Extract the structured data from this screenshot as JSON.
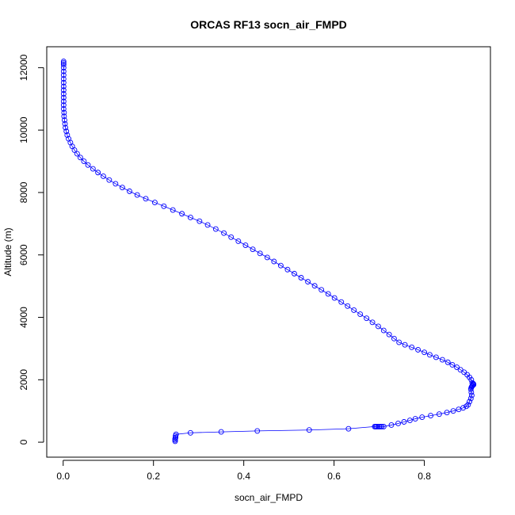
{
  "chart_data": {
    "type": "line",
    "title": "ORCAS RF13 socn_air_FMPD",
    "xlabel": "socn_air_FMPD",
    "ylabel": "Altitude (m)",
    "xlim": [
      -0.0364,
      0.9464
    ],
    "ylim": [
      -480,
      12670
    ],
    "xticks": [
      0.0,
      0.2,
      0.4,
      0.6,
      0.8
    ],
    "xtick_labels": [
      "0.0",
      "0.2",
      "0.4",
      "0.6",
      "0.8"
    ],
    "yticks": [
      0,
      2000,
      4000,
      6000,
      8000,
      10000,
      12000
    ],
    "ytick_labels": [
      "0",
      "2000",
      "4000",
      "6000",
      "8000",
      "10000",
      "12000"
    ],
    "grid": false,
    "series": [
      {
        "color": "#0000ff",
        "marker": "open-circle",
        "line": true,
        "x": [
          0.248,
          0.248,
          0.248,
          0.249,
          0.249,
          0.25,
          0.282,
          0.35,
          0.43,
          0.545,
          0.632,
          0.69,
          0.692,
          0.694,
          0.697,
          0.7,
          0.703,
          0.706,
          0.71,
          0.727,
          0.742,
          0.755,
          0.768,
          0.78,
          0.795,
          0.814,
          0.833,
          0.85,
          0.864,
          0.876,
          0.886,
          0.893,
          0.897,
          0.9,
          0.903,
          0.905,
          0.904,
          0.903,
          0.904,
          0.905,
          0.906,
          0.907,
          0.909,
          0.909,
          0.908,
          0.906,
          0.904,
          0.9,
          0.895,
          0.888,
          0.88,
          0.872,
          0.862,
          0.852,
          0.84,
          0.826,
          0.812,
          0.8,
          0.786,
          0.772,
          0.757,
          0.744,
          0.733,
          0.722,
          0.71,
          0.698,
          0.685,
          0.672,
          0.658,
          0.644,
          0.63,
          0.616,
          0.601,
          0.587,
          0.572,
          0.557,
          0.542,
          0.527,
          0.512,
          0.497,
          0.482,
          0.467,
          0.452,
          0.436,
          0.42,
          0.404,
          0.388,
          0.372,
          0.356,
          0.338,
          0.32,
          0.302,
          0.282,
          0.263,
          0.243,
          0.223,
          0.203,
          0.183,
          0.164,
          0.147,
          0.131,
          0.116,
          0.102,
          0.089,
          0.077,
          0.066,
          0.055,
          0.046,
          0.038,
          0.031,
          0.025,
          0.02,
          0.016,
          0.012,
          0.009,
          0.007,
          0.005,
          0.004,
          0.003,
          0.002,
          0.002,
          0.001,
          0.001,
          0.001,
          0.001,
          0.001,
          0.001,
          0.001,
          0.001,
          0.001,
          0.001,
          0.001,
          0.001,
          0.001,
          0.001,
          0.001
        ],
        "y": [
          30,
          70,
          110,
          150,
          200,
          250,
          300,
          330,
          360,
          390,
          430,
          500,
          500,
          500,
          500,
          500,
          500,
          500,
          500,
          550,
          600,
          650,
          700,
          750,
          800,
          850,
          900,
          950,
          1000,
          1050,
          1100,
          1150,
          1200,
          1300,
          1400,
          1500,
          1600,
          1700,
          1750,
          1780,
          1800,
          1820,
          1840,
          1860,
          1880,
          1900,
          2000,
          2080,
          2160,
          2240,
          2320,
          2400,
          2480,
          2560,
          2640,
          2720,
          2800,
          2880,
          2960,
          3040,
          3120,
          3200,
          3320,
          3450,
          3580,
          3710,
          3840,
          3970,
          4100,
          4230,
          4360,
          4490,
          4620,
          4750,
          4880,
          5010,
          5140,
          5270,
          5400,
          5530,
          5660,
          5790,
          5920,
          6050,
          6180,
          6310,
          6440,
          6570,
          6700,
          6830,
          6960,
          7080,
          7200,
          7320,
          7440,
          7560,
          7680,
          7800,
          7920,
          8040,
          8160,
          8280,
          8400,
          8520,
          8640,
          8760,
          8880,
          9000,
          9120,
          9240,
          9360,
          9480,
          9600,
          9720,
          9840,
          9960,
          10080,
          10200,
          10320,
          10440,
          10560,
          10680,
          10800,
          10920,
          11040,
          11160,
          11280,
          11400,
          11520,
          11640,
          11760,
          11880,
          12000,
          12100,
          12150,
          12200
        ]
      }
    ]
  }
}
